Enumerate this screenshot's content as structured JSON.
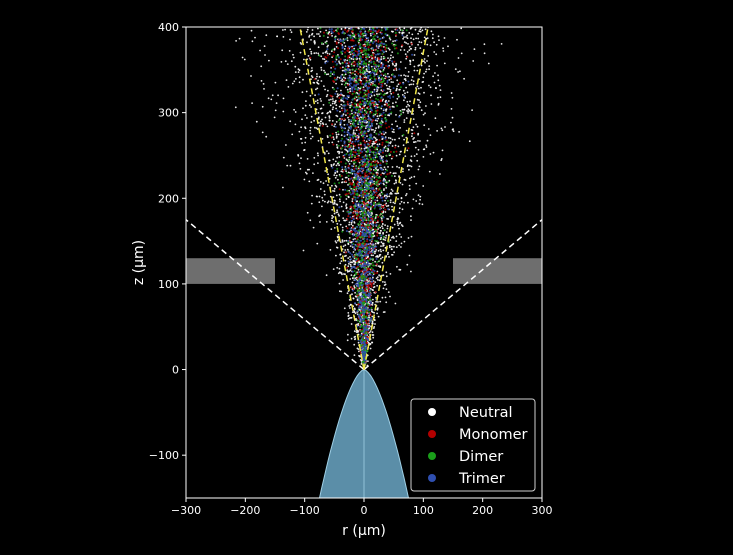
{
  "chart_data": {
    "type": "scatter",
    "title": "",
    "xlabel": "r (μm)",
    "ylabel": "z (μm)",
    "xlim": [
      -300,
      300
    ],
    "ylim": [
      -150,
      400
    ],
    "x_ticks": [
      -300,
      -200,
      -100,
      0,
      100,
      200,
      300
    ],
    "y_ticks": [
      -100,
      0,
      100,
      200,
      300,
      400
    ],
    "x_tick_labels": [
      "−300",
      "−200",
      "−100",
      "0",
      "100",
      "200",
      "300"
    ],
    "y_tick_labels": [
      "−100",
      "0",
      "100",
      "200",
      "300",
      "400"
    ],
    "background": "#000000",
    "grid": false,
    "legend_position": "lower-right",
    "series": [
      {
        "name": "Neutral",
        "color": "#ffffff"
      },
      {
        "name": "Monomer",
        "color": "#b30000"
      },
      {
        "name": "Dimer",
        "color": "#1a9e1a"
      },
      {
        "name": "Trimer",
        "color": "#2f4fb0"
      }
    ],
    "plates": [
      {
        "r_range": [
          -300,
          -150
        ],
        "z_range": [
          100,
          130
        ],
        "color": "#6e6e6e"
      },
      {
        "r_range": [
          150,
          300
        ],
        "z_range": [
          100,
          130
        ],
        "color": "#6e6e6e"
      }
    ],
    "white_dashed_lines": [
      {
        "from": [
          0,
          0
        ],
        "to": [
          -300,
          175
        ]
      },
      {
        "from": [
          0,
          0
        ],
        "to": [
          300,
          175
        ]
      }
    ],
    "yellow_dashed_lines": [
      {
        "from": [
          0,
          0
        ],
        "to": [
          -108,
          400
        ]
      },
      {
        "from": [
          0,
          0
        ],
        "to": [
          108,
          400
        ]
      }
    ],
    "emitter_profile": {
      "apex": [
        0,
        0
      ],
      "base_z": -150,
      "base_half_width": 75,
      "fill": "#5b8ea8",
      "edge": "#9fd0e6"
    }
  }
}
